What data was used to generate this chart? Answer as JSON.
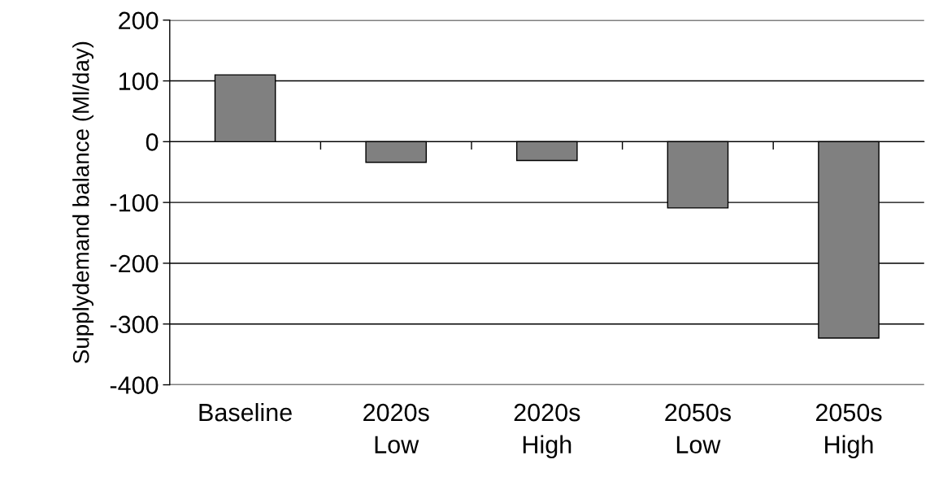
{
  "chart_data": {
    "type": "bar",
    "ylabel": "Supplydemand balance (Ml/day)",
    "categories": [
      "Baseline",
      "2020s\nLow",
      "2020s\nHigh",
      "2050s\nLow",
      "2050s\nHigh"
    ],
    "values": [
      110,
      -34,
      -31,
      -109,
      -323
    ],
    "color": "#808080",
    "ylim": [
      -400,
      200
    ],
    "yticks": [
      -400,
      -300,
      -200,
      -100,
      0,
      100,
      200
    ],
    "grid": "y"
  }
}
